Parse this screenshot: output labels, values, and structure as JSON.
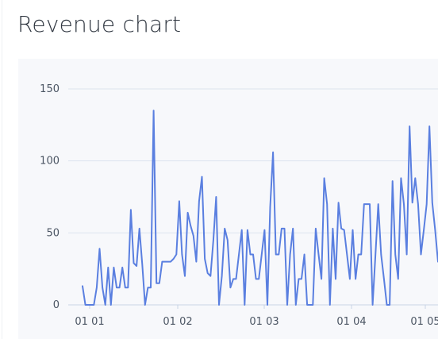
{
  "page": {
    "title": "Revenue chart"
  },
  "chart_data": {
    "type": "line",
    "title": "",
    "xlabel": "",
    "ylabel": "",
    "ylim": [
      0,
      160
    ],
    "grid": true,
    "y_ticks": [
      0,
      50,
      100,
      150
    ],
    "x_ticks": [
      "01 01",
      "01 02",
      "01 03",
      "01 04",
      "01 05"
    ],
    "series": [
      {
        "values": [
          13,
          0,
          0,
          0,
          0,
          12,
          39,
          12,
          0,
          26,
          0,
          26,
          12,
          12,
          26,
          12,
          12,
          66,
          29,
          27,
          53,
          28,
          0,
          12,
          12,
          135,
          15,
          15,
          30,
          30,
          30,
          30,
          32,
          35,
          72,
          35,
          20,
          64,
          55,
          48,
          30,
          72,
          89,
          32,
          22,
          20,
          45,
          75,
          0,
          20,
          53,
          45,
          12,
          18,
          18,
          35,
          52,
          0,
          52,
          35,
          35,
          18,
          18,
          35,
          52,
          0,
          68,
          106,
          35,
          35,
          53,
          53,
          0,
          35,
          53,
          0,
          18,
          18,
          35,
          0,
          0,
          0,
          53,
          35,
          18,
          88,
          70,
          0,
          53,
          18,
          71,
          53,
          52,
          35,
          18,
          52,
          18,
          35,
          35,
          70,
          70,
          70,
          0,
          35,
          70,
          35,
          18,
          0,
          0,
          86,
          35,
          18,
          88,
          70,
          35,
          124,
          71,
          88,
          70,
          35,
          52,
          70,
          124,
          71,
          52,
          30
        ],
        "color": "#5a7fe0"
      }
    ]
  }
}
